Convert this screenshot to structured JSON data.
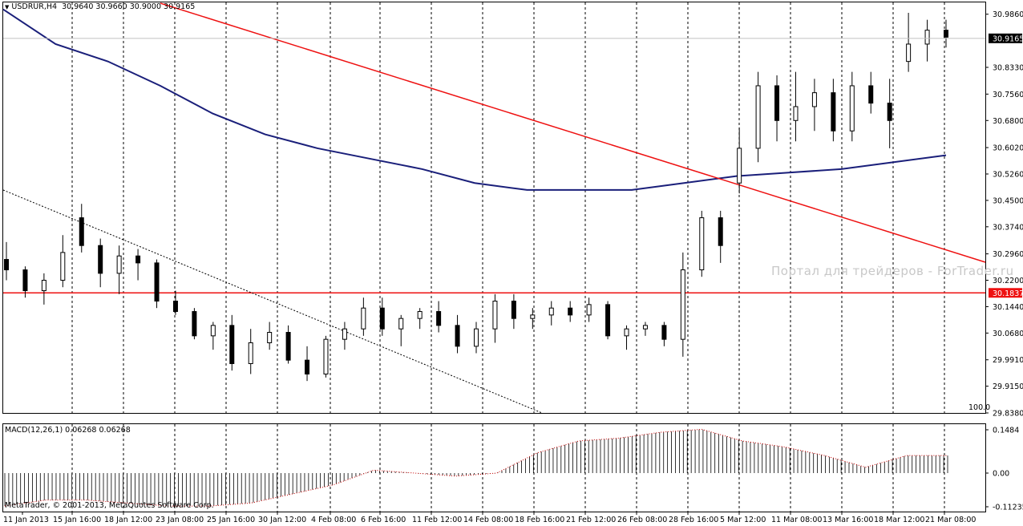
{
  "header": {
    "symbol": "USDRUR,H4",
    "ohlc": "30.9640 30.9660 30.9000 30.9165"
  },
  "indicator": {
    "label": "MACD(12,26,1) 0.06268 0.06268",
    "y_axis": [
      "0.1484",
      "0.00",
      "-0.11235"
    ]
  },
  "copyright": "MetaTrader, © 2001-2013, MetaQuotes Software Corp.",
  "watermark": "Портал для трейдеров - ForTrader.ru",
  "scale_percent": "100.0",
  "price_axis": [
    "30.9860",
    "30.9165",
    "30.8330",
    "30.7560",
    "30.6800",
    "30.6020",
    "30.5260",
    "30.4500",
    "30.3740",
    "30.2960",
    "30.2200",
    "30.1837",
    "30.1440",
    "30.0680",
    "29.9910",
    "29.9150",
    "29.8380"
  ],
  "current_price": "30.9165",
  "hline_price": "30.1837",
  "time_axis": [
    "11 Jan 2013",
    "15 Jan 16:00",
    "18 Jan 12:00",
    "23 Jan 08:00",
    "25 Jan 16:00",
    "30 Jan 12:00",
    "4 Feb 08:00",
    "6 Feb 16:00",
    "11 Feb 12:00",
    "14 Feb 08:00",
    "18 Feb 16:00",
    "21 Feb 12:00",
    "26 Feb 08:00",
    "28 Feb 16:00",
    "5 Mar 12:00",
    "11 Mar 08:00",
    "13 Mar 16:00",
    "18 Mar 12:00",
    "21 Mar 08:00"
  ],
  "colors": {
    "trendline": "#ee1111",
    "moving_average": "#1a1f7a",
    "current_price_label": "#000000",
    "hline_label": "#ee1111"
  },
  "chart_data": {
    "type": "candlestick",
    "symbol": "USDRUR",
    "timeframe": "H4",
    "y_range": [
      29.838,
      31.02
    ],
    "series": [
      {
        "name": "USDRUR",
        "ohlc_by_segment": [
          [
            30.28,
            30.33,
            30.22,
            30.25
          ],
          [
            30.25,
            30.26,
            30.17,
            30.19
          ],
          [
            30.19,
            30.24,
            30.15,
            30.22
          ],
          [
            30.22,
            30.35,
            30.2,
            30.3
          ],
          [
            30.4,
            30.44,
            30.3,
            30.32
          ],
          [
            30.32,
            30.34,
            30.2,
            30.24
          ],
          [
            30.24,
            30.32,
            30.18,
            30.29
          ],
          [
            30.29,
            30.31,
            30.22,
            30.27
          ],
          [
            30.27,
            30.28,
            30.14,
            30.16
          ],
          [
            30.16,
            30.19,
            30.12,
            30.13
          ],
          [
            30.13,
            30.14,
            30.05,
            30.06
          ],
          [
            30.06,
            30.1,
            30.02,
            30.09
          ],
          [
            30.09,
            30.12,
            29.96,
            29.98
          ],
          [
            29.98,
            30.08,
            29.95,
            30.04
          ],
          [
            30.04,
            30.1,
            30.02,
            30.07
          ],
          [
            30.07,
            30.09,
            29.98,
            29.99
          ],
          [
            29.99,
            30.03,
            29.93,
            29.95
          ],
          [
            29.95,
            30.06,
            29.94,
            30.05
          ],
          [
            30.05,
            30.1,
            30.02,
            30.08
          ],
          [
            30.08,
            30.17,
            30.06,
            30.14
          ],
          [
            30.14,
            30.17,
            30.06,
            30.08
          ],
          [
            30.08,
            30.12,
            30.03,
            30.11
          ],
          [
            30.11,
            30.14,
            30.08,
            30.13
          ],
          [
            30.13,
            30.16,
            30.07,
            30.09
          ],
          [
            30.09,
            30.12,
            30.01,
            30.03
          ],
          [
            30.03,
            30.1,
            30.01,
            30.08
          ],
          [
            30.08,
            30.18,
            30.04,
            30.16
          ],
          [
            30.16,
            30.18,
            30.08,
            30.11
          ],
          [
            30.11,
            30.14,
            30.08,
            30.12
          ],
          [
            30.12,
            30.16,
            30.09,
            30.14
          ],
          [
            30.14,
            30.16,
            30.1,
            30.12
          ],
          [
            30.12,
            30.17,
            30.1,
            30.15
          ],
          [
            30.15,
            30.16,
            30.05,
            30.06
          ],
          [
            30.06,
            30.09,
            30.02,
            30.08
          ],
          [
            30.08,
            30.1,
            30.06,
            30.09
          ],
          [
            30.09,
            30.1,
            30.03,
            30.05
          ],
          [
            30.05,
            30.3,
            30.0,
            30.25
          ],
          [
            30.25,
            30.42,
            30.23,
            30.4
          ],
          [
            30.4,
            30.42,
            30.27,
            30.32
          ],
          [
            30.5,
            30.66,
            30.47,
            30.6
          ],
          [
            30.6,
            30.82,
            30.56,
            30.78
          ],
          [
            30.78,
            30.81,
            30.62,
            30.68
          ],
          [
            30.68,
            30.82,
            30.62,
            30.72
          ],
          [
            30.72,
            30.8,
            30.65,
            30.76
          ],
          [
            30.76,
            30.8,
            30.62,
            30.65
          ],
          [
            30.65,
            30.82,
            30.62,
            30.78
          ],
          [
            30.78,
            30.82,
            30.7,
            30.73
          ],
          [
            30.73,
            30.8,
            30.6,
            30.68
          ],
          [
            30.85,
            30.99,
            30.82,
            30.9
          ],
          [
            30.9,
            30.97,
            30.85,
            30.94
          ],
          [
            30.94,
            30.97,
            30.89,
            30.92
          ]
        ]
      },
      {
        "name": "Moving Average",
        "values_by_segment": [
          31.0,
          30.9,
          30.85,
          30.78,
          30.7,
          30.64,
          30.6,
          30.57,
          30.54,
          30.5,
          30.48,
          30.48,
          30.48,
          30.5,
          30.52,
          30.53,
          30.54,
          30.56,
          30.58
        ]
      },
      {
        "name": "MACD(12,26,1)",
        "values_by_segment": [
          -0.11,
          -0.09,
          -0.09,
          -0.1,
          -0.11,
          -0.11,
          -0.1,
          -0.07,
          -0.04,
          0.01,
          0.0,
          -0.01,
          0.0,
          0.07,
          0.11,
          0.12,
          0.14,
          0.15,
          0.11,
          0.09,
          0.06,
          0.02,
          0.06,
          0.06
        ]
      }
    ]
  }
}
